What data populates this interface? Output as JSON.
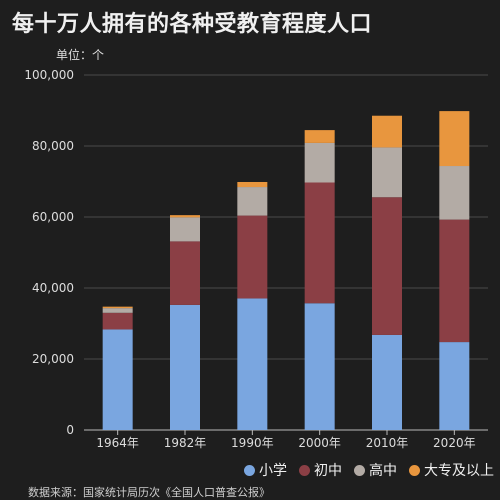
{
  "title": "每十万人拥有的各种受教育程度人口",
  "unit_label": "单位：个",
  "source": "数据来源：国家统计局历次《全国人口普查公报》",
  "chart_data": {
    "type": "bar",
    "stacked": true,
    "title": "每十万人拥有的各种受教育程度人口",
    "categories": [
      "1964年",
      "1982年",
      "1990年",
      "2000年",
      "2010年",
      "2020年"
    ],
    "series": [
      {
        "name": "小学",
        "color": "#7aa6e0",
        "values": [
          28330,
          35237,
          37057,
          35701,
          26779,
          24767
        ]
      },
      {
        "name": "初中",
        "color": "#8b3f45",
        "values": [
          4680,
          17892,
          23344,
          34018,
          38788,
          34507
        ]
      },
      {
        "name": "高中",
        "color": "#b3aba5",
        "values": [
          1319,
          6779,
          8039,
          11146,
          14032,
          15088
        ]
      },
      {
        "name": "大专及以上",
        "color": "#e8963e",
        "values": [
          416,
          615,
          1422,
          3611,
          8930,
          15467
        ]
      }
    ],
    "y_ticks": [
      "0",
      "20,000",
      "40,000",
      "60,000",
      "80,000",
      "100,000"
    ],
    "ylim": [
      0,
      100000
    ],
    "grid": true,
    "legend_position": "bottom-right"
  }
}
